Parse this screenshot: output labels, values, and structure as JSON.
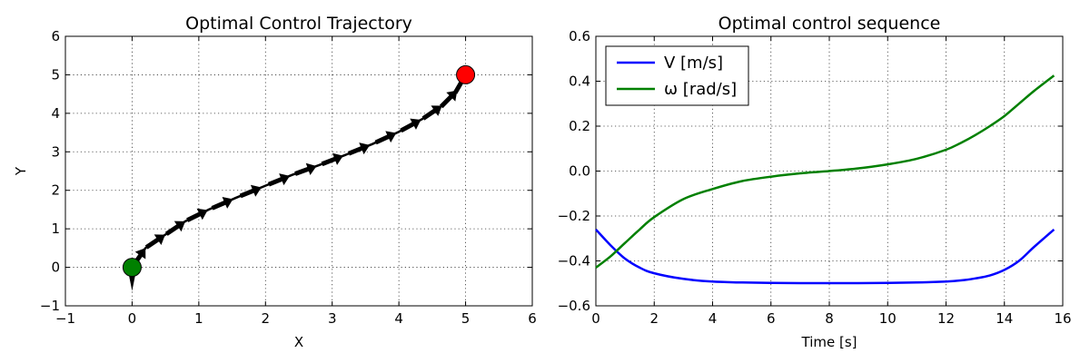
{
  "chart_data": [
    {
      "type": "line",
      "title": "Optimal Control Trajectory",
      "xlabel": "X",
      "ylabel": "Y",
      "xlim": [
        -1,
        6
      ],
      "ylim": [
        -1,
        6
      ],
      "xticks": [
        "−1",
        "0",
        "1",
        "2",
        "3",
        "4",
        "5",
        "6"
      ],
      "yticks": [
        "−1",
        "0",
        "1",
        "2",
        "3",
        "4",
        "5",
        "6"
      ],
      "grid": true,
      "path": {
        "x": [
          0.0,
          0.2,
          0.5,
          0.8,
          1.15,
          1.55,
          2.0,
          2.4,
          2.8,
          3.2,
          3.6,
          4.0,
          4.35,
          4.65,
          4.85,
          5.0
        ],
        "y": [
          0.0,
          0.5,
          0.85,
          1.2,
          1.5,
          1.8,
          2.12,
          2.4,
          2.65,
          2.92,
          3.2,
          3.52,
          3.85,
          4.2,
          4.55,
          5.0
        ],
        "color": "#000000"
      },
      "start": {
        "x": 0,
        "y": 0,
        "color": "#008000"
      },
      "goal": {
        "x": 5,
        "y": 5,
        "color": "#ff0000"
      }
    },
    {
      "type": "line",
      "title": "Optimal control sequence",
      "xlabel": "Time [s]",
      "ylabel": "",
      "xlim": [
        0,
        16
      ],
      "ylim": [
        -0.6,
        0.6
      ],
      "xticks": [
        "0",
        "2",
        "4",
        "6",
        "8",
        "10",
        "12",
        "14",
        "16"
      ],
      "yticks": [
        "−0.6",
        "−0.4",
        "−0.2",
        "0.0",
        "0.2",
        "0.4",
        "0.6"
      ],
      "grid": true,
      "legend_position": "top-left",
      "series": [
        {
          "name": "V [m/s]",
          "color": "#0000ff",
          "x": [
            0,
            0.5,
            1,
            1.5,
            2,
            3,
            4,
            5,
            6,
            7,
            8,
            9,
            10,
            11,
            12,
            12.5,
            13,
            13.5,
            14,
            14.5,
            15,
            15.7
          ],
          "y": [
            -0.26,
            -0.33,
            -0.39,
            -0.43,
            -0.455,
            -0.48,
            -0.492,
            -0.496,
            -0.498,
            -0.499,
            -0.499,
            -0.499,
            -0.498,
            -0.496,
            -0.492,
            -0.487,
            -0.478,
            -0.465,
            -0.44,
            -0.4,
            -0.34,
            -0.26
          ]
        },
        {
          "name": "ω [rad/s]",
          "color": "#008000",
          "x": [
            0,
            0.5,
            1,
            1.5,
            2,
            3,
            4,
            5,
            6,
            7,
            8,
            9,
            10,
            11,
            12,
            12.5,
            13,
            13.5,
            14,
            14.5,
            15,
            15.7
          ],
          "y": [
            -0.43,
            -0.38,
            -0.32,
            -0.26,
            -0.205,
            -0.125,
            -0.08,
            -0.045,
            -0.025,
            -0.01,
            0.0,
            0.012,
            0.03,
            0.055,
            0.095,
            0.125,
            0.16,
            0.2,
            0.245,
            0.3,
            0.355,
            0.425
          ]
        }
      ]
    }
  ]
}
